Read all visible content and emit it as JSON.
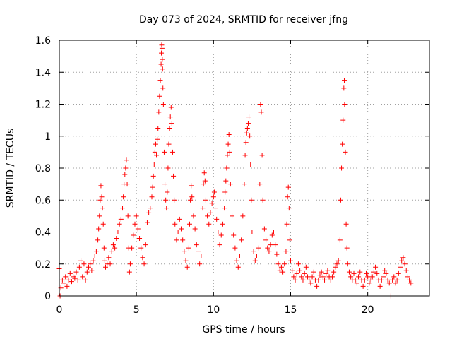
{
  "chart_data": {
    "type": "scatter",
    "title": "Day 073 of 2024, SRMTID for receiver jfng",
    "xlabel": "GPS time / hours",
    "ylabel": "SRMTID / TECUs",
    "xlim": [
      0,
      24
    ],
    "ylim": [
      0,
      1.6
    ],
    "xticks": [
      0,
      5,
      10,
      15,
      20
    ],
    "xtick_labels": [
      "0",
      "5",
      "10",
      "15",
      "20"
    ],
    "yticks": [
      0,
      0.2,
      0.4,
      0.6,
      0.8,
      1.0,
      1.2,
      1.4,
      1.6
    ],
    "ytick_labels": [
      "0",
      "0.2",
      "0.4",
      "0.6",
      "0.8",
      "1",
      "1.2",
      "1.4",
      "1.6"
    ],
    "grid": true,
    "marker": "plus",
    "series": [
      {
        "name": "SRMTID",
        "color": "#ff0000",
        "points": [
          [
            0.0,
            0.17
          ],
          [
            0.05,
            0.0
          ],
          [
            0.1,
            0.05
          ],
          [
            0.2,
            0.1
          ],
          [
            0.3,
            0.08
          ],
          [
            0.4,
            0.12
          ],
          [
            0.5,
            0.06
          ],
          [
            0.6,
            0.1
          ],
          [
            0.7,
            0.14
          ],
          [
            0.8,
            0.09
          ],
          [
            0.9,
            0.12
          ],
          [
            1.0,
            0.11
          ],
          [
            1.1,
            0.15
          ],
          [
            1.2,
            0.1
          ],
          [
            1.3,
            0.18
          ],
          [
            1.4,
            0.22
          ],
          [
            1.5,
            0.12
          ],
          [
            1.6,
            0.2
          ],
          [
            1.7,
            0.1
          ],
          [
            1.8,
            0.15
          ],
          [
            1.9,
            0.18
          ],
          [
            2.0,
            0.2
          ],
          [
            2.1,
            0.16
          ],
          [
            2.2,
            0.22
          ],
          [
            2.3,
            0.25
          ],
          [
            2.4,
            0.28
          ],
          [
            2.5,
            0.35
          ],
          [
            2.55,
            0.42
          ],
          [
            2.6,
            0.5
          ],
          [
            2.65,
            0.6
          ],
          [
            2.7,
            0.69
          ],
          [
            2.75,
            0.62
          ],
          [
            2.8,
            0.55
          ],
          [
            2.85,
            0.45
          ],
          [
            2.9,
            0.3
          ],
          [
            2.95,
            0.22
          ],
          [
            3.0,
            0.18
          ],
          [
            3.1,
            0.2
          ],
          [
            3.2,
            0.24
          ],
          [
            3.3,
            0.2
          ],
          [
            3.4,
            0.28
          ],
          [
            3.5,
            0.32
          ],
          [
            3.6,
            0.3
          ],
          [
            3.7,
            0.36
          ],
          [
            3.8,
            0.4
          ],
          [
            3.9,
            0.45
          ],
          [
            4.0,
            0.48
          ],
          [
            4.1,
            0.55
          ],
          [
            4.15,
            0.62
          ],
          [
            4.2,
            0.7
          ],
          [
            4.25,
            0.76
          ],
          [
            4.3,
            0.8
          ],
          [
            4.35,
            0.85
          ],
          [
            4.4,
            0.7
          ],
          [
            4.45,
            0.5
          ],
          [
            4.5,
            0.3
          ],
          [
            4.55,
            0.15
          ],
          [
            4.6,
            0.2
          ],
          [
            4.7,
            0.3
          ],
          [
            4.8,
            0.38
          ],
          [
            4.9,
            0.45
          ],
          [
            5.0,
            0.5
          ],
          [
            5.1,
            0.42
          ],
          [
            5.2,
            0.36
          ],
          [
            5.3,
            0.3
          ],
          [
            5.4,
            0.24
          ],
          [
            5.5,
            0.2
          ],
          [
            5.6,
            0.32
          ],
          [
            5.7,
            0.46
          ],
          [
            5.8,
            0.52
          ],
          [
            5.9,
            0.55
          ],
          [
            6.0,
            0.62
          ],
          [
            6.05,
            0.68
          ],
          [
            6.1,
            0.75
          ],
          [
            6.15,
            0.82
          ],
          [
            6.2,
            0.9
          ],
          [
            6.25,
            0.95
          ],
          [
            6.3,
            0.88
          ],
          [
            6.35,
            0.98
          ],
          [
            6.4,
            1.05
          ],
          [
            6.45,
            1.15
          ],
          [
            6.5,
            1.25
          ],
          [
            6.55,
            1.35
          ],
          [
            6.6,
            1.45
          ],
          [
            6.62,
            1.52
          ],
          [
            6.64,
            1.57
          ],
          [
            6.66,
            1.55
          ],
          [
            6.68,
            1.48
          ],
          [
            6.7,
            1.42
          ],
          [
            6.72,
            1.3
          ],
          [
            6.75,
            1.2
          ],
          [
            6.8,
            0.9
          ],
          [
            6.85,
            0.7
          ],
          [
            6.9,
            0.6
          ],
          [
            6.95,
            0.55
          ],
          [
            7.0,
            0.65
          ],
          [
            7.05,
            0.8
          ],
          [
            7.1,
            0.95
          ],
          [
            7.15,
            1.05
          ],
          [
            7.2,
            1.12
          ],
          [
            7.25,
            1.18
          ],
          [
            7.3,
            1.08
          ],
          [
            7.35,
            0.9
          ],
          [
            7.4,
            0.75
          ],
          [
            7.45,
            0.6
          ],
          [
            7.5,
            0.45
          ],
          [
            7.6,
            0.35
          ],
          [
            7.7,
            0.4
          ],
          [
            7.8,
            0.48
          ],
          [
            7.9,
            0.42
          ],
          [
            8.0,
            0.35
          ],
          [
            8.1,
            0.28
          ],
          [
            8.2,
            0.22
          ],
          [
            8.3,
            0.18
          ],
          [
            8.4,
            0.3
          ],
          [
            8.45,
            0.45
          ],
          [
            8.5,
            0.6
          ],
          [
            8.55,
            0.69
          ],
          [
            8.6,
            0.62
          ],
          [
            8.7,
            0.5
          ],
          [
            8.8,
            0.42
          ],
          [
            8.9,
            0.32
          ],
          [
            9.0,
            0.28
          ],
          [
            9.1,
            0.2
          ],
          [
            9.2,
            0.25
          ],
          [
            9.3,
            0.55
          ],
          [
            9.35,
            0.7
          ],
          [
            9.4,
            0.77
          ],
          [
            9.45,
            0.72
          ],
          [
            9.5,
            0.6
          ],
          [
            9.6,
            0.5
          ],
          [
            9.7,
            0.45
          ],
          [
            9.8,
            0.52
          ],
          [
            9.9,
            0.58
          ],
          [
            10.0,
            0.62
          ],
          [
            10.05,
            0.65
          ],
          [
            10.1,
            0.55
          ],
          [
            10.2,
            0.48
          ],
          [
            10.3,
            0.4
          ],
          [
            10.4,
            0.32
          ],
          [
            10.5,
            0.38
          ],
          [
            10.6,
            0.45
          ],
          [
            10.7,
            0.55
          ],
          [
            10.75,
            0.65
          ],
          [
            10.8,
            0.72
          ],
          [
            10.85,
            0.8
          ],
          [
            10.9,
            0.88
          ],
          [
            10.95,
            0.95
          ],
          [
            11.0,
            1.01
          ],
          [
            11.05,
            0.9
          ],
          [
            11.1,
            0.7
          ],
          [
            11.2,
            0.5
          ],
          [
            11.3,
            0.38
          ],
          [
            11.4,
            0.3
          ],
          [
            11.5,
            0.22
          ],
          [
            11.6,
            0.18
          ],
          [
            11.7,
            0.25
          ],
          [
            11.8,
            0.35
          ],
          [
            11.9,
            0.5
          ],
          [
            12.0,
            0.7
          ],
          [
            12.05,
            0.88
          ],
          [
            12.1,
            0.96
          ],
          [
            12.15,
            1.02
          ],
          [
            12.2,
            1.05
          ],
          [
            12.25,
            1.08
          ],
          [
            12.3,
            1.12
          ],
          [
            12.35,
            1.0
          ],
          [
            12.4,
            0.82
          ],
          [
            12.45,
            0.6
          ],
          [
            12.5,
            0.4
          ],
          [
            12.6,
            0.28
          ],
          [
            12.7,
            0.22
          ],
          [
            12.8,
            0.25
          ],
          [
            12.9,
            0.3
          ],
          [
            13.0,
            0.7
          ],
          [
            13.05,
            1.2
          ],
          [
            13.1,
            1.15
          ],
          [
            13.15,
            0.88
          ],
          [
            13.2,
            0.6
          ],
          [
            13.3,
            0.42
          ],
          [
            13.4,
            0.35
          ],
          [
            13.5,
            0.3
          ],
          [
            13.6,
            0.28
          ],
          [
            13.7,
            0.32
          ],
          [
            13.8,
            0.38
          ],
          [
            13.9,
            0.4
          ],
          [
            14.0,
            0.32
          ],
          [
            14.1,
            0.26
          ],
          [
            14.2,
            0.2
          ],
          [
            14.3,
            0.16
          ],
          [
            14.4,
            0.18
          ],
          [
            14.5,
            0.15
          ],
          [
            14.6,
            0.2
          ],
          [
            14.7,
            0.28
          ],
          [
            14.75,
            0.45
          ],
          [
            14.8,
            0.62
          ],
          [
            14.85,
            0.68
          ],
          [
            14.9,
            0.55
          ],
          [
            14.95,
            0.35
          ],
          [
            15.0,
            0.22
          ],
          [
            15.1,
            0.16
          ],
          [
            15.2,
            0.12
          ],
          [
            15.3,
            0.1
          ],
          [
            15.4,
            0.14
          ],
          [
            15.5,
            0.2
          ],
          [
            15.6,
            0.16
          ],
          [
            15.7,
            0.12
          ],
          [
            15.8,
            0.1
          ],
          [
            15.9,
            0.14
          ],
          [
            16.0,
            0.18
          ],
          [
            16.1,
            0.12
          ],
          [
            16.2,
            0.1
          ],
          [
            16.3,
            0.08
          ],
          [
            16.4,
            0.12
          ],
          [
            16.5,
            0.15
          ],
          [
            16.6,
            0.1
          ],
          [
            16.7,
            0.06
          ],
          [
            16.8,
            0.1
          ],
          [
            16.9,
            0.13
          ],
          [
            17.0,
            0.15
          ],
          [
            17.1,
            0.12
          ],
          [
            17.2,
            0.1
          ],
          [
            17.3,
            0.14
          ],
          [
            17.4,
            0.16
          ],
          [
            17.5,
            0.12
          ],
          [
            17.6,
            0.1
          ],
          [
            17.7,
            0.12
          ],
          [
            17.8,
            0.15
          ],
          [
            17.9,
            0.18
          ],
          [
            18.0,
            0.2
          ],
          [
            18.1,
            0.22
          ],
          [
            18.2,
            0.35
          ],
          [
            18.25,
            0.6
          ],
          [
            18.3,
            0.8
          ],
          [
            18.35,
            0.95
          ],
          [
            18.4,
            1.1
          ],
          [
            18.45,
            1.3
          ],
          [
            18.48,
            1.35
          ],
          [
            18.5,
            1.2
          ],
          [
            18.55,
            0.9
          ],
          [
            18.6,
            0.45
          ],
          [
            18.65,
            0.3
          ],
          [
            18.7,
            0.2
          ],
          [
            18.8,
            0.15
          ],
          [
            18.9,
            0.12
          ],
          [
            19.0,
            0.1
          ],
          [
            19.1,
            0.14
          ],
          [
            19.2,
            0.1
          ],
          [
            19.3,
            0.08
          ],
          [
            19.4,
            0.12
          ],
          [
            19.5,
            0.15
          ],
          [
            19.6,
            0.1
          ],
          [
            19.7,
            0.06
          ],
          [
            19.8,
            0.1
          ],
          [
            19.9,
            0.14
          ],
          [
            20.0,
            0.12
          ],
          [
            20.1,
            0.08
          ],
          [
            20.2,
            0.1
          ],
          [
            20.3,
            0.12
          ],
          [
            20.4,
            0.15
          ],
          [
            20.5,
            0.18
          ],
          [
            20.6,
            0.14
          ],
          [
            20.7,
            0.1
          ],
          [
            20.8,
            0.06
          ],
          [
            20.9,
            0.1
          ],
          [
            21.0,
            0.12
          ],
          [
            21.1,
            0.16
          ],
          [
            21.2,
            0.14
          ],
          [
            21.3,
            0.1
          ],
          [
            21.4,
            0.08
          ],
          [
            21.5,
            0.0
          ],
          [
            21.6,
            0.1
          ],
          [
            21.7,
            0.12
          ],
          [
            21.8,
            0.08
          ],
          [
            21.9,
            0.1
          ],
          [
            22.0,
            0.14
          ],
          [
            22.1,
            0.18
          ],
          [
            22.2,
            0.22
          ],
          [
            22.3,
            0.24
          ],
          [
            22.4,
            0.2
          ],
          [
            22.5,
            0.16
          ],
          [
            22.6,
            0.12
          ],
          [
            22.7,
            0.1
          ],
          [
            22.8,
            0.08
          ]
        ]
      }
    ]
  }
}
